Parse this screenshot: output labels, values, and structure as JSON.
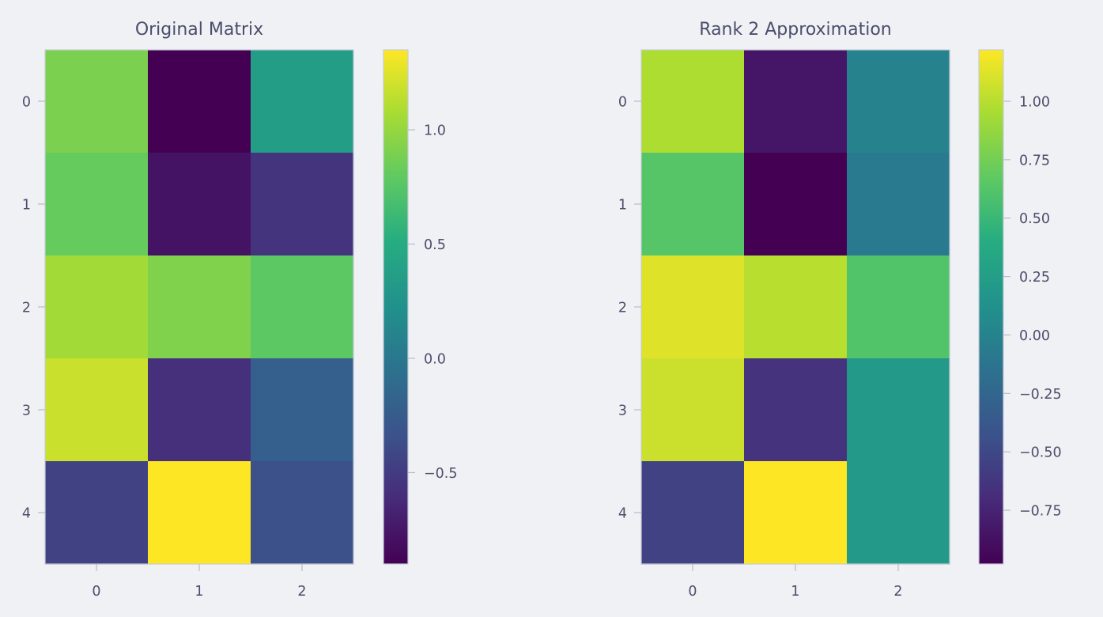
{
  "colormap": "viridis",
  "chart_data": [
    {
      "type": "heatmap",
      "title": "Original Matrix",
      "rows": [
        0,
        1,
        2,
        3,
        4
      ],
      "cols": [
        0,
        1,
        2
      ],
      "values": [
        [
          0.9,
          -0.9,
          0.35
        ],
        [
          0.82,
          -0.78,
          -0.55
        ],
        [
          1.05,
          0.92,
          0.78
        ],
        [
          1.18,
          -0.58,
          -0.22
        ],
        [
          -0.45,
          1.35,
          -0.35
        ]
      ],
      "vmin": -0.9,
      "vmax": 1.35,
      "colorbar_ticks": [
        1.0,
        0.5,
        0.0,
        -0.5
      ],
      "colorbar_tick_labels": [
        "1.0",
        "0.5",
        "0.0",
        "−0.5"
      ],
      "xlabel": "",
      "ylabel": ""
    },
    {
      "type": "heatmap",
      "title": "Rank 2 Approximation",
      "rows": [
        0,
        1,
        2,
        3,
        4
      ],
      "cols": [
        0,
        1,
        2
      ],
      "values": [
        [
          0.97,
          -0.84,
          0.0
        ],
        [
          0.63,
          -0.98,
          -0.08
        ],
        [
          1.12,
          1.0,
          0.61
        ],
        [
          1.06,
          -0.64,
          0.2
        ],
        [
          -0.54,
          1.22,
          0.2
        ]
      ],
      "vmin": -0.98,
      "vmax": 1.22,
      "colorbar_ticks": [
        1.0,
        0.75,
        0.5,
        0.25,
        0.0,
        -0.25,
        -0.5,
        -0.75
      ],
      "colorbar_tick_labels": [
        "1.00",
        "0.75",
        "0.50",
        "0.25",
        "0.00",
        "−0.25",
        "−0.50",
        "−0.75"
      ],
      "xlabel": "",
      "ylabel": ""
    }
  ]
}
